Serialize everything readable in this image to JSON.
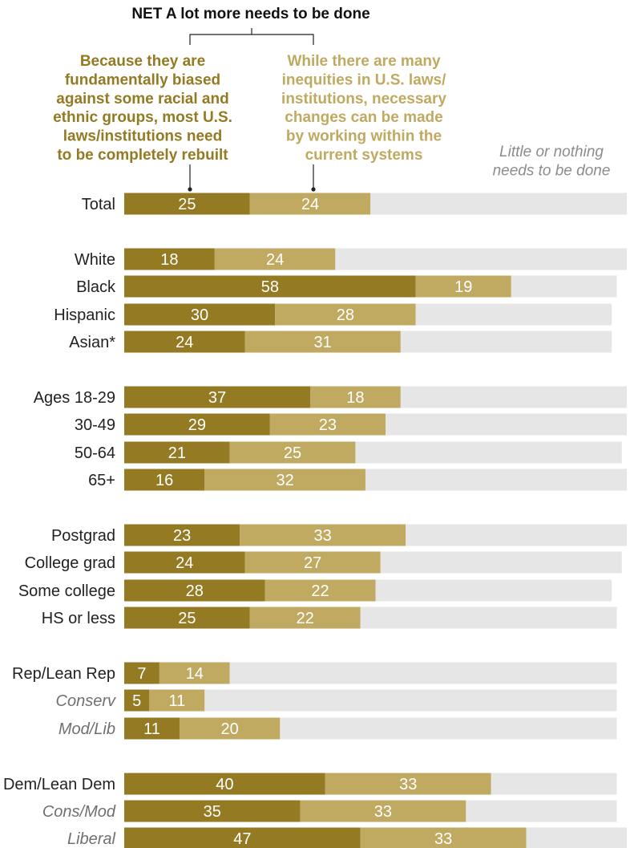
{
  "chart_data": {
    "type": "bar",
    "orientation": "horizontal",
    "stacked": true,
    "title": "NET A lot more needs to be done",
    "xlim": [
      0,
      100
    ],
    "colors": {
      "rebuilt": "#947a22",
      "within": "#c0a961",
      "little": "#e6e6e6",
      "label": "#222222",
      "sublabel": "#707070"
    },
    "legend": {
      "rebuilt": [
        "Because they are",
        "fundamentally biased",
        "against some racial and",
        "ethnic groups, most U.S.",
        "laws/institutions need",
        "to be completely rebuilt"
      ],
      "within": [
        "While there are many",
        "inequities in U.S. laws/",
        "institutions, necessary",
        "changes can be made",
        "by working within the",
        "current systems"
      ],
      "little": [
        "Little or nothing",
        "needs to be done"
      ]
    },
    "series": [
      {
        "key": "rebuilt"
      },
      {
        "key": "within"
      },
      {
        "key": "little"
      }
    ],
    "categories": [
      {
        "label": "Total",
        "group": 0,
        "sub": false,
        "values": [
          25,
          24,
          51
        ]
      },
      {
        "label": "White",
        "group": 1,
        "sub": false,
        "values": [
          18,
          24,
          58
        ]
      },
      {
        "label": "Black",
        "group": 1,
        "sub": false,
        "values": [
          58,
          19,
          21
        ]
      },
      {
        "label": "Hispanic",
        "group": 1,
        "sub": false,
        "values": [
          30,
          28,
          39
        ]
      },
      {
        "label": "Asian*",
        "group": 1,
        "sub": false,
        "values": [
          24,
          31,
          42
        ]
      },
      {
        "label": "Ages 18-29",
        "group": 2,
        "sub": false,
        "values": [
          37,
          18,
          45
        ]
      },
      {
        "label": "30-49",
        "group": 2,
        "sub": false,
        "values": [
          29,
          23,
          48
        ]
      },
      {
        "label": "50-64",
        "group": 2,
        "sub": false,
        "values": [
          21,
          25,
          53
        ]
      },
      {
        "label": "65+",
        "group": 2,
        "sub": false,
        "values": [
          16,
          32,
          52
        ]
      },
      {
        "label": "Postgrad",
        "group": 3,
        "sub": false,
        "values": [
          23,
          33,
          44
        ]
      },
      {
        "label": "College grad",
        "group": 3,
        "sub": false,
        "values": [
          24,
          27,
          48
        ]
      },
      {
        "label": "Some college",
        "group": 3,
        "sub": false,
        "values": [
          28,
          22,
          47
        ]
      },
      {
        "label": "HS or less",
        "group": 3,
        "sub": false,
        "values": [
          25,
          22,
          51
        ]
      },
      {
        "label": "Rep/Lean Rep",
        "group": 4,
        "sub": false,
        "values": [
          7,
          14,
          77
        ]
      },
      {
        "label": "Conserv",
        "group": 4,
        "sub": true,
        "values": [
          5,
          11,
          82
        ]
      },
      {
        "label": "Mod/Lib",
        "group": 4,
        "sub": true,
        "values": [
          11,
          20,
          67
        ]
      },
      {
        "label": "Dem/Lean Dem",
        "group": 5,
        "sub": false,
        "values": [
          40,
          33,
          25
        ]
      },
      {
        "label": "Cons/Mod",
        "group": 5,
        "sub": true,
        "values": [
          35,
          33,
          30
        ]
      },
      {
        "label": "Liberal",
        "group": 5,
        "sub": true,
        "values": [
          47,
          33,
          20
        ]
      }
    ]
  }
}
